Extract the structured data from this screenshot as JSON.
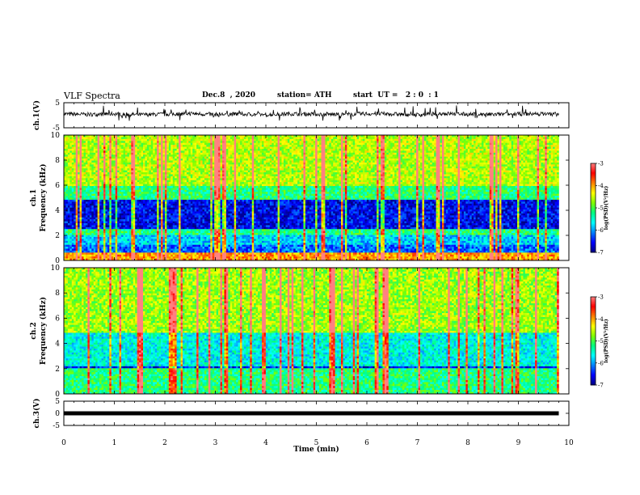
{
  "header": {
    "title": "VLF Spectra",
    "date": "Dec.8  , 2020",
    "station": "station= ATH",
    "start": "start  UT =   2 : 0  : 1"
  },
  "colors": {
    "scale": [
      "#000080",
      "#0000ff",
      "#0080ff",
      "#00ffff",
      "#00ff80",
      "#80ff00",
      "#ffff00",
      "#ff8000",
      "#ff0000",
      "#ff8080",
      "#ffffff"
    ]
  },
  "chart_data": [
    {
      "type": "line",
      "panel": "ch1-waveform",
      "ylabel": "ch.1(V)",
      "ylim": [
        -5,
        5
      ],
      "yticks": [
        "5",
        "-5"
      ],
      "x": [
        0,
        0.5,
        1,
        1.5,
        2,
        2.5,
        3,
        3.5,
        4,
        4.5,
        5,
        5.5,
        6,
        6.5,
        7,
        7.5,
        8,
        8.5,
        9,
        9.5,
        9.8
      ],
      "y": [
        0.5,
        0.3,
        0.6,
        0.2,
        0.4,
        0.7,
        0.3,
        0.5,
        0.2,
        0.6,
        0.4,
        0.3,
        0.6,
        0.5,
        0.2,
        0.7,
        0.4,
        0.3,
        0.5,
        0.6,
        0.4
      ]
    },
    {
      "type": "heatmap",
      "panel": "ch1-spectrogram",
      "ylabel": "ch.1\nFrequency  (kHz)",
      "ylim": [
        0,
        10
      ],
      "yticks": [
        "0",
        "2",
        "4",
        "6",
        "8",
        "10"
      ],
      "colorbar": {
        "label": "log(PSD)(V²/Hz)",
        "range": [
          -7,
          -3
        ],
        "ticks": [
          "-3",
          "-4",
          "-5",
          "-6",
          "-7"
        ]
      },
      "bands": [
        {
          "from": 0,
          "to": 0.6,
          "level": 0.75
        },
        {
          "from": 0.6,
          "to": 1.2,
          "level": 0.2
        },
        {
          "from": 1.2,
          "to": 2.0,
          "level": 0.3
        },
        {
          "from": 2.0,
          "to": 2.5,
          "level": 0.45
        },
        {
          "from": 2.5,
          "to": 4.8,
          "level": 0.1
        },
        {
          "from": 4.8,
          "to": 6.0,
          "level": 0.45
        },
        {
          "from": 6.0,
          "to": 10.0,
          "level": 0.6
        }
      ]
    },
    {
      "type": "heatmap",
      "panel": "ch2-spectrogram",
      "ylabel": "ch.2\nFrequency  (kHz)",
      "ylim": [
        0,
        10
      ],
      "yticks": [
        "0",
        "2",
        "4",
        "6",
        "8",
        "10"
      ],
      "colorbar": {
        "label": "log(PSD)(V²/Hz)",
        "range": [
          -7,
          -3
        ],
        "ticks": [
          "-3",
          "-4",
          "-5",
          "-6",
          "-7"
        ]
      },
      "bands": [
        {
          "from": 0,
          "to": 2.0,
          "level": 0.45
        },
        {
          "from": 2.0,
          "to": 2.2,
          "level": 0.12
        },
        {
          "from": 2.2,
          "to": 4.8,
          "level": 0.35
        },
        {
          "from": 4.8,
          "to": 10.0,
          "level": 0.58
        }
      ]
    },
    {
      "type": "line",
      "panel": "ch3-waveform",
      "ylabel": "ch.3(V)",
      "ylim": [
        -5,
        5
      ],
      "yticks": [
        "5",
        "0",
        "-5"
      ],
      "x": [
        0,
        9.8
      ],
      "y": [
        0,
        0
      ]
    }
  ],
  "xaxis": {
    "label": "Time  (min)",
    "ticks": [
      "0",
      "1",
      "2",
      "3",
      "4",
      "5",
      "6",
      "7",
      "8",
      "9",
      "10"
    ],
    "xlim": [
      0,
      10
    ]
  }
}
